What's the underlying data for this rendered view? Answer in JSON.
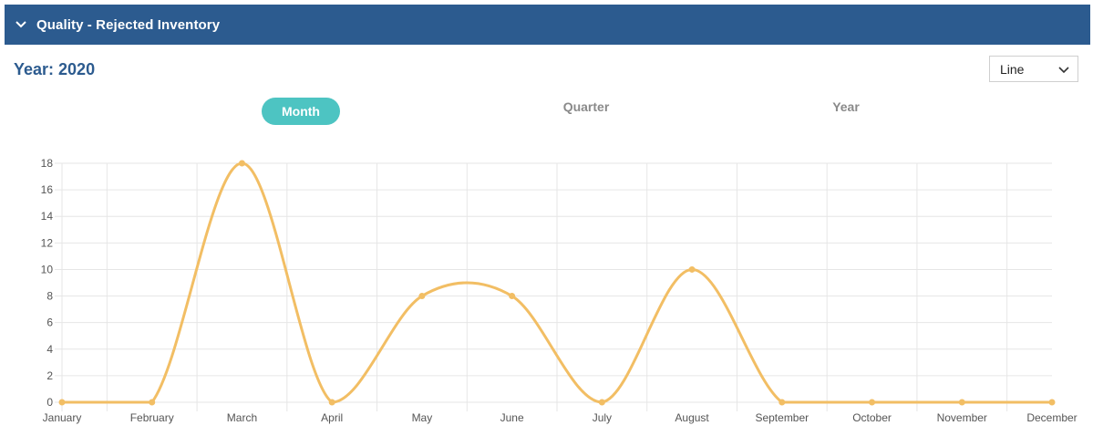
{
  "panel": {
    "title": "Quality - Rejected Inventory",
    "collapse_icon": "chevron-down-icon"
  },
  "year_label": "Year: 2020",
  "chart_type_select": {
    "value": "Line",
    "icon": "chevron-down-icon"
  },
  "tabs": [
    {
      "label": "Month",
      "active": true
    },
    {
      "label": "Quarter",
      "active": false
    },
    {
      "label": "Year",
      "active": false
    }
  ],
  "colors": {
    "header": "#2c5b8f",
    "accent": "#4dc4c2",
    "series": "#f2be64",
    "grid": "#e6e6e6"
  },
  "chart_data": {
    "type": "line",
    "title": "",
    "xlabel": "",
    "ylabel": "",
    "categories": [
      "January",
      "February",
      "March",
      "April",
      "May",
      "June",
      "July",
      "August",
      "September",
      "October",
      "November",
      "December"
    ],
    "series": [
      {
        "values": [
          0,
          0,
          18,
          0,
          8,
          8,
          0,
          10,
          0,
          0,
          0,
          0
        ]
      }
    ],
    "ylim": [
      0,
      18
    ],
    "yticks": [
      0,
      2,
      4,
      6,
      8,
      10,
      12,
      14,
      16,
      18
    ],
    "grid": true,
    "smooth": true,
    "legend": "none"
  }
}
